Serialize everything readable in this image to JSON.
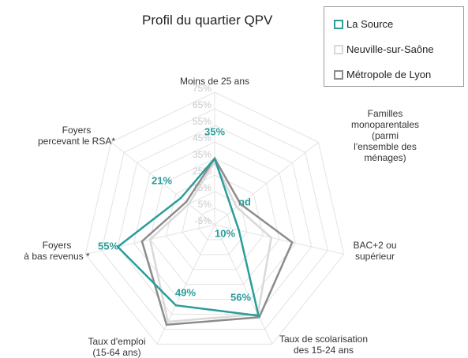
{
  "chart_data": {
    "type": "radar",
    "title": "Profil du quartier QPV",
    "categories": [
      "Moins de 25 ans",
      "Familles\nmonoparentales (parmi\nl'ensemble des ménages)",
      "BAC+2 ou\nsupérieur",
      "Taux de scolarisation\ndes 15-24 ans",
      "Taux d'emploi\n(15-64 ans)",
      "Foyers\nà bas revenus *",
      "Foyers\npercevant le RSA*"
    ],
    "series": [
      {
        "name": "Neuville-sur-Saône",
        "color": "#d9d9d9",
        "values": [
          33,
          12,
          30,
          55,
          60,
          35,
          15
        ]
      },
      {
        "name": "Métropole de Lyon",
        "color": "#8c8c8c",
        "values": [
          35,
          15,
          43,
          57,
          62,
          40,
          17
        ]
      },
      {
        "name": "La Source",
        "color": "#2a9d9a",
        "values": [
          35,
          null,
          10,
          56,
          49,
          55,
          21
        ],
        "value_labels": [
          "35%",
          "nd",
          "10%",
          "56%",
          "49%",
          "55%",
          "21%"
        ]
      }
    ],
    "legend_order": [
      2,
      0,
      1
    ],
    "ylim": [
      -5,
      75
    ],
    "yticks": [
      {
        "value": -5,
        "label": "-5%"
      },
      {
        "value": 5,
        "label": "5%"
      },
      {
        "value": 15,
        "label": "15%"
      },
      {
        "value": 25,
        "label": "25%"
      },
      {
        "value": 35,
        "label": "35%"
      },
      {
        "value": 45,
        "label": "45%"
      },
      {
        "value": 55,
        "label": "55%"
      },
      {
        "value": 65,
        "label": "65%"
      },
      {
        "value": 75,
        "label": "75%"
      }
    ],
    "grid": true
  }
}
